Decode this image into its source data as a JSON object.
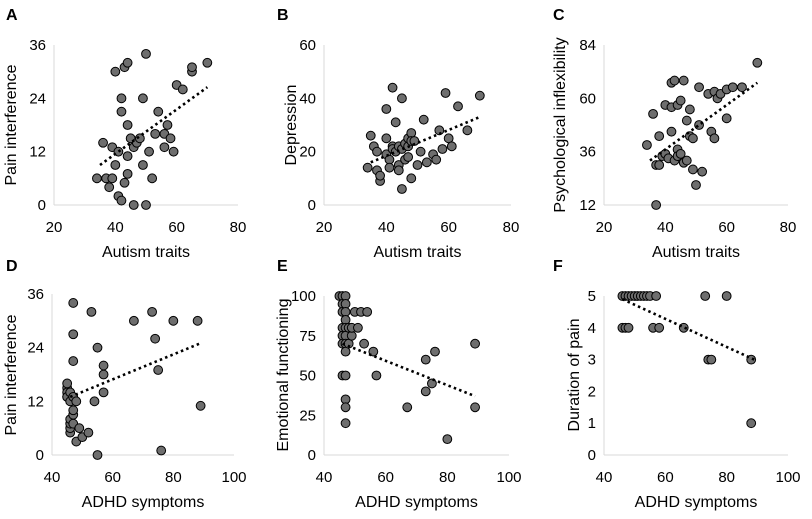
{
  "chart_data": [
    {
      "type": "scatter",
      "panel_label": "A",
      "xlabel": "Autism traits",
      "ylabel": "Pain interference",
      "xlim": [
        20,
        80
      ],
      "ylim": [
        0,
        36
      ],
      "xticks": [
        20,
        40,
        60,
        80
      ],
      "yticks": [
        0,
        12,
        24,
        36
      ],
      "trendline": [
        [
          35,
          9
        ],
        [
          70,
          26.5
        ]
      ],
      "points": [
        [
          34,
          6
        ],
        [
          36,
          14
        ],
        [
          37,
          6
        ],
        [
          38,
          4
        ],
        [
          39,
          6
        ],
        [
          39,
          13
        ],
        [
          40,
          9
        ],
        [
          40,
          30
        ],
        [
          41,
          12
        ],
        [
          41,
          2
        ],
        [
          42,
          1
        ],
        [
          42,
          21
        ],
        [
          42,
          24
        ],
        [
          43,
          31
        ],
        [
          43,
          5
        ],
        [
          44,
          18
        ],
        [
          44,
          32
        ],
        [
          44,
          11
        ],
        [
          44,
          7
        ],
        [
          45,
          15
        ],
        [
          46,
          0
        ],
        [
          46,
          13
        ],
        [
          47,
          14
        ],
        [
          48,
          15
        ],
        [
          49,
          24
        ],
        [
          49,
          9
        ],
        [
          50,
          34
        ],
        [
          50,
          0
        ],
        [
          51,
          12
        ],
        [
          52,
          6
        ],
        [
          53,
          16
        ],
        [
          54,
          21
        ],
        [
          56,
          16
        ],
        [
          56,
          13
        ],
        [
          57,
          18
        ],
        [
          58,
          15
        ],
        [
          59,
          12
        ],
        [
          60,
          27
        ],
        [
          62,
          26
        ],
        [
          65,
          30
        ],
        [
          65,
          31
        ],
        [
          70,
          32
        ]
      ]
    },
    {
      "type": "scatter",
      "panel_label": "B",
      "xlabel": "Autism traits",
      "ylabel": "Depression",
      "xlim": [
        20,
        80
      ],
      "ylim": [
        0,
        60
      ],
      "xticks": [
        20,
        40,
        60,
        80
      ],
      "yticks": [
        0,
        20,
        40,
        60
      ],
      "trendline": [
        [
          35,
          16
        ],
        [
          70,
          33
        ]
      ],
      "points": [
        [
          34,
          14
        ],
        [
          35,
          26
        ],
        [
          36,
          22
        ],
        [
          37,
          20
        ],
        [
          37,
          13
        ],
        [
          38,
          9
        ],
        [
          38,
          11
        ],
        [
          40,
          36
        ],
        [
          40,
          25
        ],
        [
          40,
          19
        ],
        [
          41,
          17
        ],
        [
          41,
          14
        ],
        [
          42,
          44
        ],
        [
          42,
          22
        ],
        [
          42,
          21
        ],
        [
          43,
          31
        ],
        [
          43,
          20
        ],
        [
          44,
          15
        ],
        [
          44,
          13
        ],
        [
          44,
          22
        ],
        [
          45,
          40
        ],
        [
          45,
          21
        ],
        [
          45,
          6
        ],
        [
          46,
          17
        ],
        [
          46,
          23
        ],
        [
          47,
          22
        ],
        [
          47,
          25
        ],
        [
          47,
          18
        ],
        [
          48,
          27
        ],
        [
          48,
          24
        ],
        [
          48,
          10
        ],
        [
          49,
          24
        ],
        [
          50,
          15
        ],
        [
          51,
          20
        ],
        [
          52,
          32
        ],
        [
          53,
          16
        ],
        [
          55,
          19
        ],
        [
          56,
          17
        ],
        [
          57,
          28
        ],
        [
          58,
          21
        ],
        [
          59,
          42
        ],
        [
          60,
          25
        ],
        [
          61,
          22
        ],
        [
          63,
          37
        ],
        [
          66,
          28
        ],
        [
          70,
          41
        ]
      ]
    },
    {
      "type": "scatter",
      "panel_label": "C",
      "xlabel": "Autism traits",
      "ylabel": "Psychological inflexibility",
      "xlim": [
        20,
        80
      ],
      "ylim": [
        12,
        84
      ],
      "xticks": [
        20,
        40,
        60,
        80
      ],
      "yticks": [
        12,
        36,
        60,
        84
      ],
      "trendline": [
        [
          35,
          32
        ],
        [
          70,
          67
        ]
      ],
      "points": [
        [
          34,
          39
        ],
        [
          36,
          53
        ],
        [
          37,
          12
        ],
        [
          37,
          30
        ],
        [
          38,
          30
        ],
        [
          38,
          43
        ],
        [
          39,
          34
        ],
        [
          40,
          57
        ],
        [
          40,
          35
        ],
        [
          41,
          33
        ],
        [
          42,
          67
        ],
        [
          42,
          45
        ],
        [
          42,
          56
        ],
        [
          43,
          32
        ],
        [
          43,
          68
        ],
        [
          44,
          37
        ],
        [
          44,
          34
        ],
        [
          44,
          57
        ],
        [
          45,
          35
        ],
        [
          45,
          59
        ],
        [
          46,
          31
        ],
        [
          46,
          68
        ],
        [
          47,
          50
        ],
        [
          47,
          32
        ],
        [
          48,
          43
        ],
        [
          48,
          55
        ],
        [
          49,
          28
        ],
        [
          49,
          42
        ],
        [
          50,
          21
        ],
        [
          51,
          48
        ],
        [
          51,
          65
        ],
        [
          52,
          27
        ],
        [
          54,
          62
        ],
        [
          55,
          45
        ],
        [
          56,
          42
        ],
        [
          56,
          63
        ],
        [
          57,
          60
        ],
        [
          58,
          62
        ],
        [
          60,
          51
        ],
        [
          60,
          64
        ],
        [
          62,
          65
        ],
        [
          65,
          65
        ],
        [
          70,
          76
        ]
      ]
    },
    {
      "type": "scatter",
      "panel_label": "D",
      "xlabel": "ADHD symptoms",
      "ylabel": "Pain interference",
      "xlim": [
        40,
        100
      ],
      "ylim": [
        0,
        36
      ],
      "xticks": [
        40,
        60,
        80,
        100
      ],
      "yticks": [
        0,
        12,
        24,
        36
      ],
      "trendline": [
        [
          46,
          13
        ],
        [
          89,
          25
        ]
      ],
      "points": [
        [
          45,
          13
        ],
        [
          45,
          15
        ],
        [
          45,
          16
        ],
        [
          45,
          14
        ],
        [
          45,
          13
        ],
        [
          46,
          5
        ],
        [
          46,
          6
        ],
        [
          46,
          7
        ],
        [
          46,
          8
        ],
        [
          46,
          12
        ],
        [
          46,
          14
        ],
        [
          47,
          7
        ],
        [
          47,
          9
        ],
        [
          47,
          10
        ],
        [
          47,
          13
        ],
        [
          47,
          21
        ],
        [
          47,
          27
        ],
        [
          47,
          34
        ],
        [
          48,
          3
        ],
        [
          48,
          12
        ],
        [
          49,
          6
        ],
        [
          50,
          4
        ],
        [
          52,
          5
        ],
        [
          53,
          32
        ],
        [
          54,
          12
        ],
        [
          55,
          0
        ],
        [
          55,
          24
        ],
        [
          57,
          20
        ],
        [
          57,
          18
        ],
        [
          57,
          14
        ],
        [
          67,
          30
        ],
        [
          73,
          32
        ],
        [
          74,
          26
        ],
        [
          75,
          19
        ],
        [
          76,
          1
        ],
        [
          80,
          30
        ],
        [
          88,
          30
        ],
        [
          89,
          11
        ]
      ]
    },
    {
      "type": "scatter",
      "panel_label": "E",
      "xlabel": "ADHD symptoms",
      "ylabel": "Emotional functioning",
      "xlim": [
        40,
        100
      ],
      "ylim": [
        0,
        100
      ],
      "xticks": [
        40,
        60,
        80,
        100
      ],
      "yticks": [
        0,
        25,
        50,
        75,
        100
      ],
      "trendline": [
        [
          46,
          70
        ],
        [
          89,
          37
        ]
      ],
      "points": [
        [
          45,
          100
        ],
        [
          46,
          100
        ],
        [
          46,
          95
        ],
        [
          46,
          90
        ],
        [
          46,
          80
        ],
        [
          46,
          75
        ],
        [
          46,
          70
        ],
        [
          46,
          50
        ],
        [
          47,
          100
        ],
        [
          47,
          95
        ],
        [
          47,
          90
        ],
        [
          47,
          85
        ],
        [
          47,
          80
        ],
        [
          47,
          75
        ],
        [
          47,
          70
        ],
        [
          47,
          65
        ],
        [
          47,
          50
        ],
        [
          47,
          35
        ],
        [
          47,
          30
        ],
        [
          47,
          20
        ],
        [
          48,
          80
        ],
        [
          48,
          70
        ],
        [
          49,
          75
        ],
        [
          49,
          80
        ],
        [
          50,
          90
        ],
        [
          51,
          80
        ],
        [
          52,
          90
        ],
        [
          53,
          70
        ],
        [
          54,
          90
        ],
        [
          56,
          65
        ],
        [
          57,
          50
        ],
        [
          67,
          30
        ],
        [
          73,
          60
        ],
        [
          73,
          40
        ],
        [
          75,
          45
        ],
        [
          76,
          65
        ],
        [
          80,
          10
        ],
        [
          89,
          70
        ],
        [
          89,
          30
        ]
      ]
    },
    {
      "type": "scatter",
      "panel_label": "F",
      "xlabel": "ADHD symptoms",
      "ylabel": "Duration of pain",
      "xlim": [
        40,
        100
      ],
      "ylim": [
        0,
        5
      ],
      "xticks": [
        40,
        60,
        80,
        100
      ],
      "yticks": [
        0,
        1,
        2,
        3,
        4,
        5
      ],
      "trendline": [
        [
          46,
          4.9
        ],
        [
          89,
          3.0
        ]
      ],
      "points": [
        [
          46,
          5
        ],
        [
          46,
          4
        ],
        [
          47,
          5
        ],
        [
          47,
          4
        ],
        [
          48,
          5
        ],
        [
          48,
          4
        ],
        [
          49,
          5
        ],
        [
          50,
          5
        ],
        [
          51,
          5
        ],
        [
          52,
          5
        ],
        [
          53,
          5
        ],
        [
          54,
          5
        ],
        [
          55,
          5
        ],
        [
          56,
          4
        ],
        [
          57,
          5
        ],
        [
          58,
          4
        ],
        [
          66,
          4
        ],
        [
          73,
          5
        ],
        [
          74,
          3
        ],
        [
          75,
          3
        ],
        [
          80,
          5
        ],
        [
          88,
          3
        ],
        [
          88,
          1
        ]
      ]
    }
  ]
}
